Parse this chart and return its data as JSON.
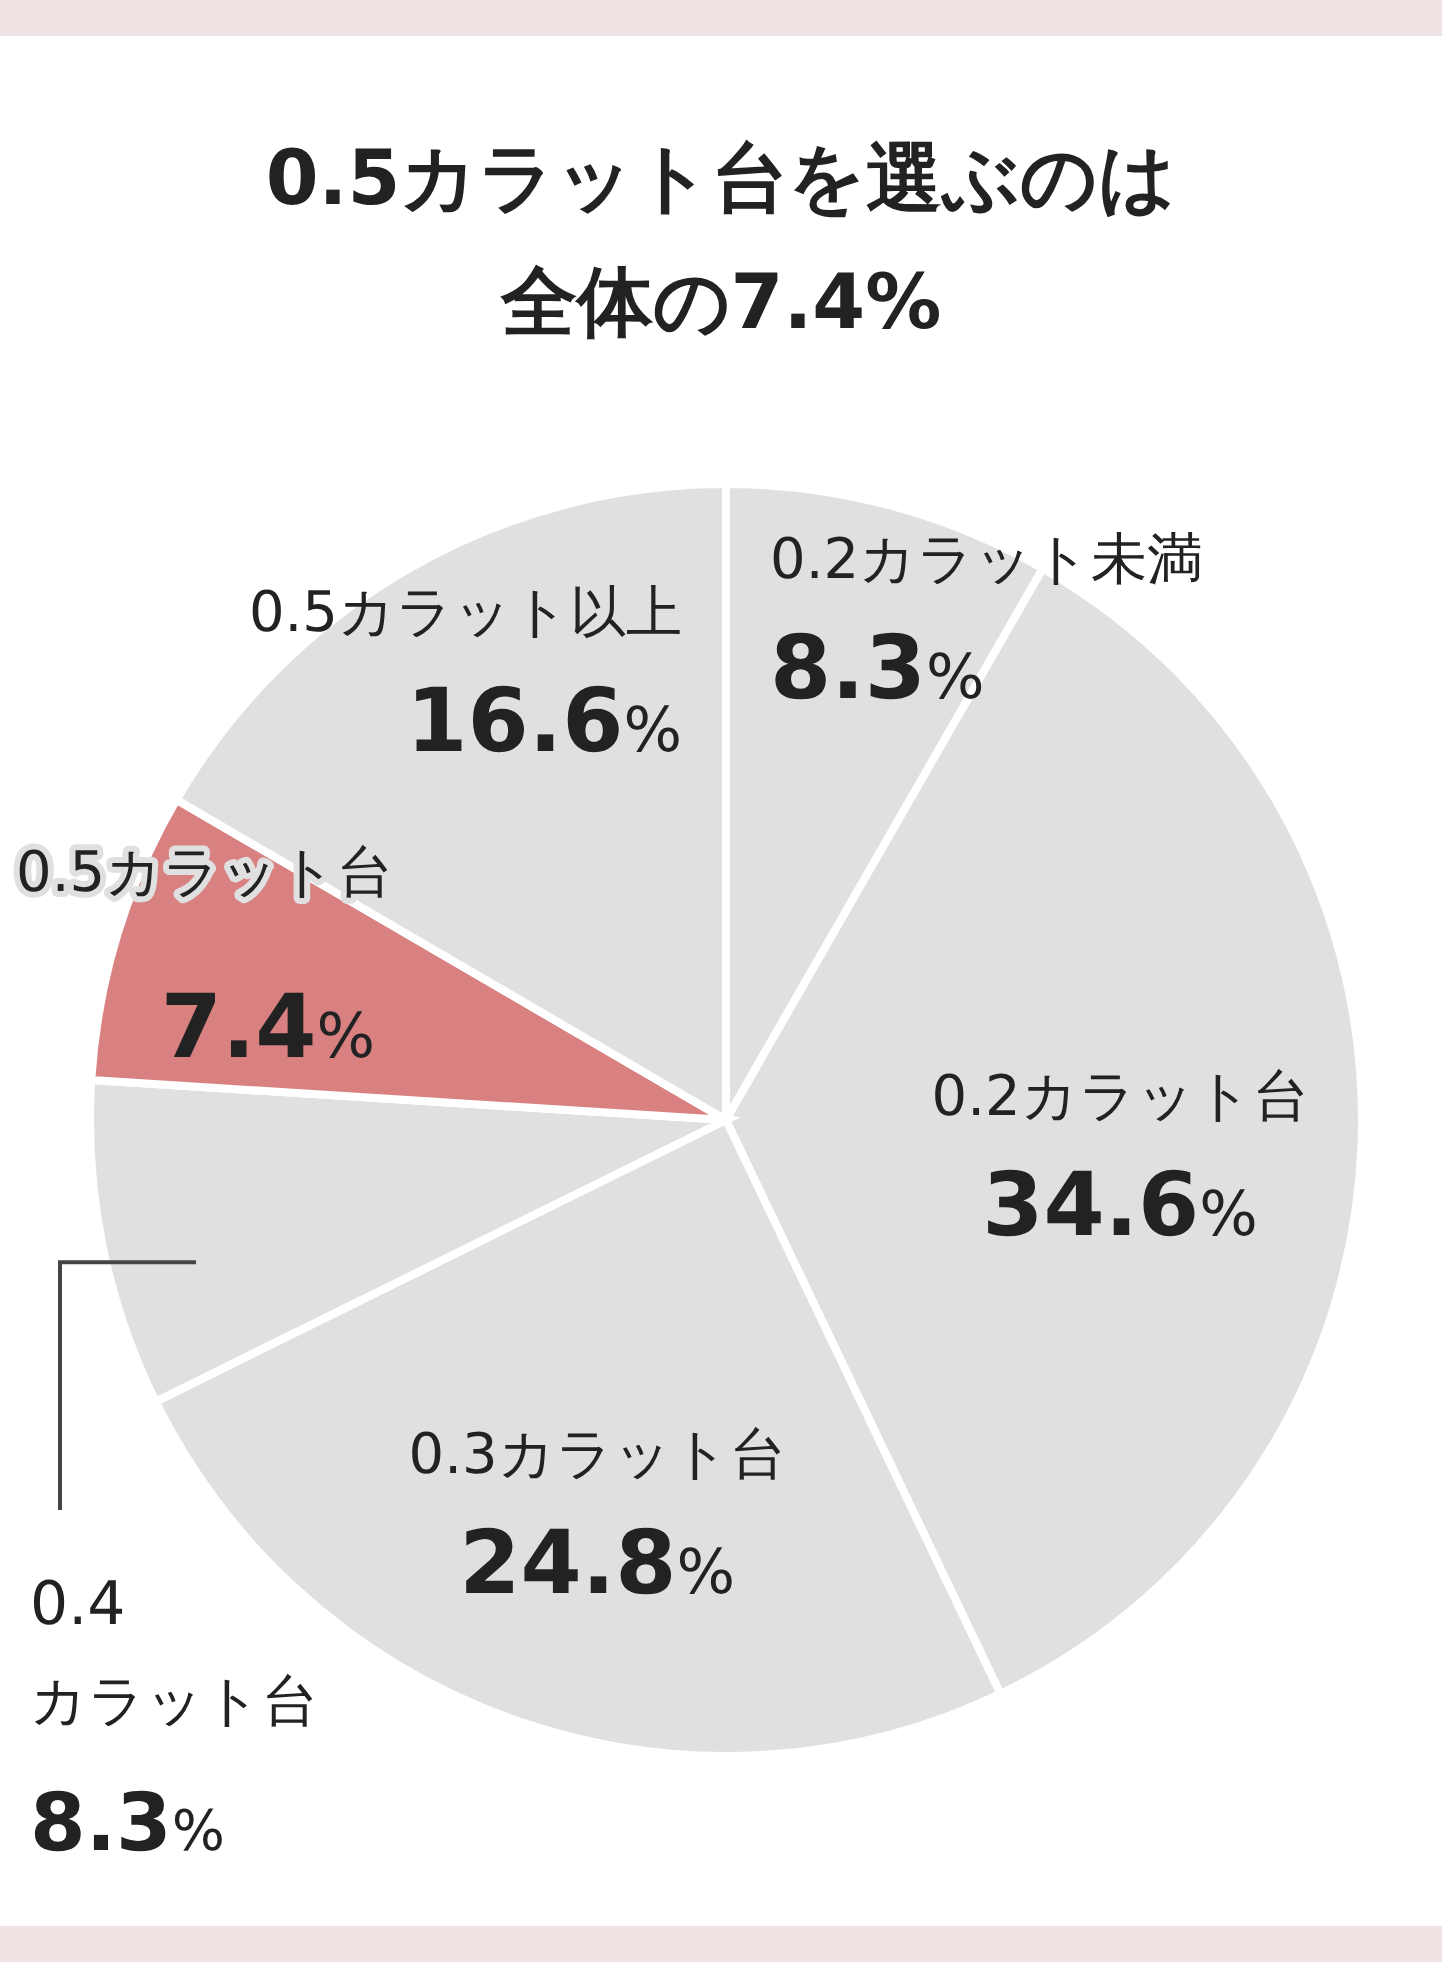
{
  "chart_data": {
    "type": "pie",
    "title": "0.5カラット台を選ぶのは全体の7.4%",
    "categories": [
      "0.2カラット未満",
      "0.2カラット台",
      "0.3カラット台",
      "0.4カラット台",
      "0.5カラット台",
      "0.5カラット以上"
    ],
    "values": [
      8.3,
      34.6,
      24.8,
      8.3,
      7.4,
      16.6
    ],
    "value_labels": [
      "8.3%",
      "34.6%",
      "24.8%",
      "8.3%",
      "7.4%",
      "16.6%"
    ],
    "colors": [
      "#e0e0e0",
      "#e0e0e0",
      "#e0e0e0",
      "#e0e0e0",
      "#d98080",
      "#e0e0e0"
    ],
    "legend": false
  }
}
